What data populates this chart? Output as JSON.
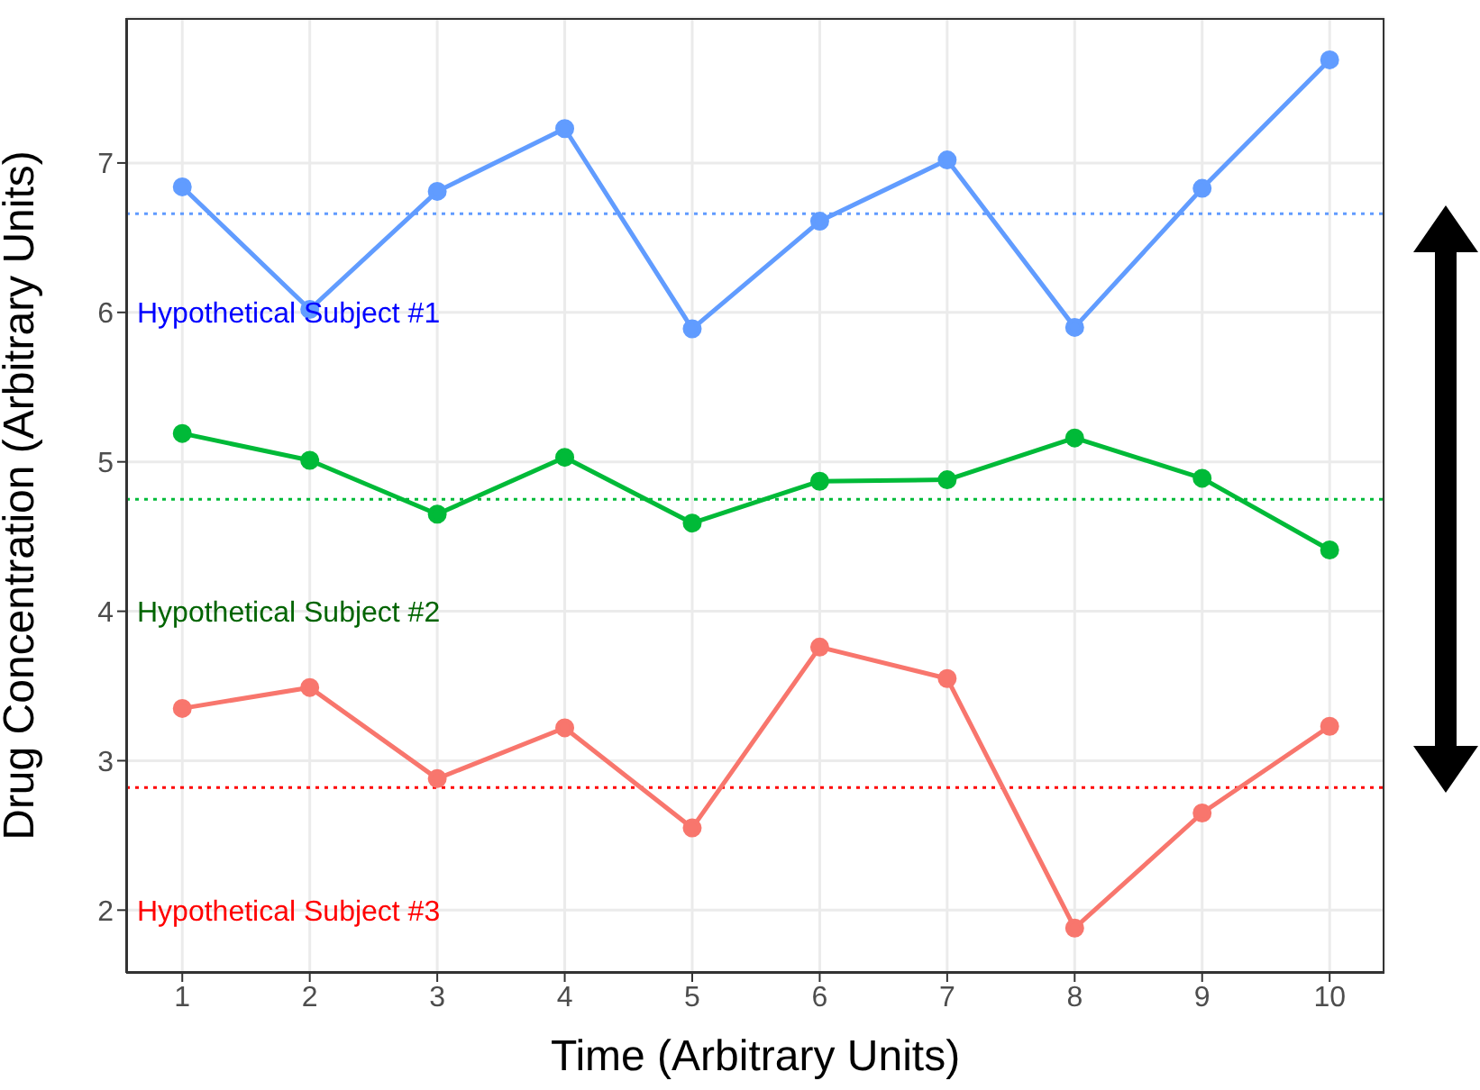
{
  "chart_data": {
    "type": "line",
    "xlabel": "Time (Arbitrary Units)",
    "ylabel": "Drug Concentration (Arbitrary Units)",
    "x": [
      1,
      2,
      3,
      4,
      5,
      6,
      7,
      8,
      9,
      10
    ],
    "series": [
      {
        "color": "#619cff",
        "values": [
          6.84,
          6.02,
          6.81,
          7.23,
          5.89,
          6.61,
          7.02,
          5.9,
          6.83,
          7.69
        ]
      },
      {
        "color": "#00ba38",
        "values": [
          5.19,
          5.01,
          4.65,
          5.03,
          4.59,
          4.87,
          4.88,
          5.16,
          4.89,
          4.41
        ]
      },
      {
        "color": "#f8766d",
        "values": [
          3.35,
          3.49,
          2.88,
          3.22,
          2.55,
          3.76,
          3.55,
          1.88,
          2.65,
          3.23
        ]
      }
    ],
    "ref_lines": [
      {
        "axis": "y",
        "value": 6.66,
        "color": "#619cff",
        "line_style": "dotted"
      },
      {
        "axis": "y",
        "value": 4.75,
        "color": "#00ba38",
        "line_style": "dotted"
      },
      {
        "axis": "y",
        "value": 2.82,
        "color": "#ff0000",
        "line_style": "dotted"
      }
    ],
    "annotations": [
      "Hypothetical Subject #1",
      "Hypothetical Subject #2",
      "Hypothetical Subject #3"
    ],
    "xlim": [
      0.56,
      10.43
    ],
    "xticks": [
      1,
      2,
      3,
      4,
      5,
      6,
      7,
      8,
      9,
      10
    ],
    "ylim": [
      1.58,
      7.97
    ],
    "yticks": [
      2,
      3,
      4,
      5,
      6,
      7
    ],
    "grid": true,
    "marker": "circle",
    "line_style": "solid"
  }
}
